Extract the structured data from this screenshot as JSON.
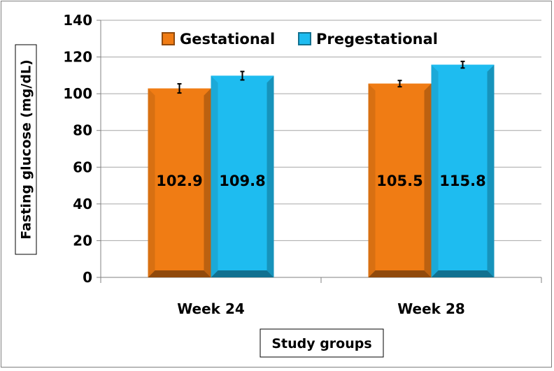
{
  "chart_data": {
    "type": "bar",
    "title": "",
    "xlabel": "Study groups",
    "ylabel": "Fasting glucose (mg/dL)",
    "ylim": [
      0,
      140
    ],
    "yticks": [
      0,
      20,
      40,
      60,
      80,
      100,
      120,
      140
    ],
    "categories": [
      "Week 24",
      "Week 28"
    ],
    "series": [
      {
        "name": "Gestational",
        "values": [
          102.9,
          105.5
        ],
        "errors": [
          2.5,
          1.7
        ],
        "color": "#f07c14"
      },
      {
        "name": "Pregestational",
        "values": [
          109.8,
          115.8
        ],
        "errors": [
          2.3,
          1.8
        ],
        "color": "#1ebcf0"
      }
    ],
    "data_labels": [
      [
        "102.9",
        "105.5"
      ],
      [
        "109.8",
        "115.8"
      ]
    ],
    "grid": "horizontal",
    "legend_position": "top-center",
    "style": "3d-bevel"
  }
}
